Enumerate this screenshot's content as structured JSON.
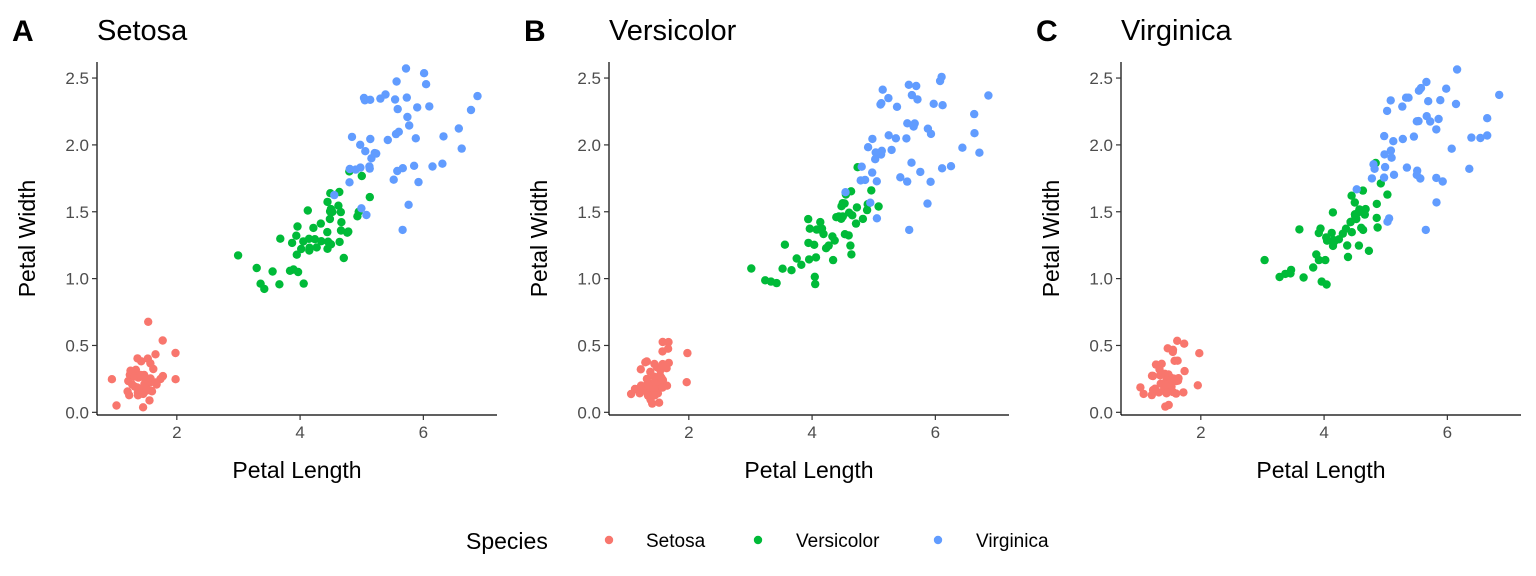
{
  "chart_data": [
    {
      "type": "scatter",
      "tag": "A",
      "title": "Setosa",
      "xlabel": "Petal Length",
      "ylabel": "Petal Width",
      "xlim": [
        0.705,
        7.195
      ],
      "ylim": [
        -0.02,
        2.62
      ],
      "xticks": [
        2,
        4,
        6
      ],
      "yticks": [
        "0.0",
        "0.5",
        "1.0",
        "1.5",
        "2.0",
        "2.5"
      ],
      "grid": false,
      "jitter": true
    },
    {
      "type": "scatter",
      "tag": "B",
      "title": "Versicolor",
      "xlabel": "Petal Length",
      "ylabel": "Petal Width",
      "xlim": [
        0.705,
        7.195
      ],
      "ylim": [
        -0.02,
        2.62
      ],
      "xticks": [
        2,
        4,
        6
      ],
      "yticks": [
        "0.0",
        "0.5",
        "1.0",
        "1.5",
        "2.0",
        "2.5"
      ],
      "grid": false,
      "jitter": true
    },
    {
      "type": "scatter",
      "tag": "C",
      "title": "Virginica",
      "xlabel": "Petal Length",
      "ylabel": "Petal Width",
      "xlim": [
        0.705,
        7.195
      ],
      "ylim": [
        -0.02,
        2.62
      ],
      "xticks": [
        2,
        4,
        6
      ],
      "yticks": [
        "0.0",
        "0.5",
        "1.0",
        "1.5",
        "2.0",
        "2.5"
      ],
      "grid": false,
      "jitter": true
    }
  ],
  "series": [
    {
      "name": "Setosa",
      "color": "#F8766D",
      "points": [
        [
          1.4,
          0.2
        ],
        [
          1.4,
          0.2
        ],
        [
          1.3,
          0.2
        ],
        [
          1.5,
          0.2
        ],
        [
          1.4,
          0.2
        ],
        [
          1.7,
          0.4
        ],
        [
          1.4,
          0.3
        ],
        [
          1.5,
          0.2
        ],
        [
          1.4,
          0.2
        ],
        [
          1.5,
          0.1
        ],
        [
          1.5,
          0.2
        ],
        [
          1.6,
          0.2
        ],
        [
          1.4,
          0.1
        ],
        [
          1.1,
          0.1
        ],
        [
          1.2,
          0.2
        ],
        [
          1.5,
          0.4
        ],
        [
          1.3,
          0.4
        ],
        [
          1.4,
          0.3
        ],
        [
          1.7,
          0.3
        ],
        [
          1.5,
          0.3
        ],
        [
          1.7,
          0.2
        ],
        [
          1.5,
          0.4
        ],
        [
          1.0,
          0.2
        ],
        [
          1.7,
          0.5
        ],
        [
          1.9,
          0.2
        ],
        [
          1.6,
          0.2
        ],
        [
          1.6,
          0.4
        ],
        [
          1.5,
          0.2
        ],
        [
          1.4,
          0.2
        ],
        [
          1.6,
          0.2
        ],
        [
          1.6,
          0.2
        ],
        [
          1.5,
          0.4
        ],
        [
          1.5,
          0.1
        ],
        [
          1.4,
          0.2
        ],
        [
          1.5,
          0.2
        ],
        [
          1.2,
          0.2
        ],
        [
          1.3,
          0.2
        ],
        [
          1.4,
          0.1
        ],
        [
          1.3,
          0.2
        ],
        [
          1.5,
          0.2
        ],
        [
          1.3,
          0.3
        ],
        [
          1.3,
          0.3
        ],
        [
          1.3,
          0.2
        ],
        [
          1.6,
          0.6
        ],
        [
          1.9,
          0.4
        ],
        [
          1.4,
          0.3
        ],
        [
          1.6,
          0.2
        ],
        [
          1.4,
          0.2
        ],
        [
          1.5,
          0.2
        ],
        [
          1.4,
          0.2
        ]
      ]
    },
    {
      "name": "Versicolor",
      "color": "#00BA38",
      "points": [
        [
          4.7,
          1.4
        ],
        [
          4.5,
          1.5
        ],
        [
          4.9,
          1.5
        ],
        [
          4.0,
          1.3
        ],
        [
          4.6,
          1.5
        ],
        [
          4.5,
          1.3
        ],
        [
          4.7,
          1.6
        ],
        [
          3.3,
          1.0
        ],
        [
          4.6,
          1.3
        ],
        [
          3.9,
          1.4
        ],
        [
          3.5,
          1.0
        ],
        [
          4.2,
          1.5
        ],
        [
          4.0,
          1.0
        ],
        [
          4.7,
          1.4
        ],
        [
          3.6,
          1.3
        ],
        [
          4.4,
          1.4
        ],
        [
          4.5,
          1.5
        ],
        [
          4.1,
          1.0
        ],
        [
          4.5,
          1.5
        ],
        [
          3.9,
          1.1
        ],
        [
          4.8,
          1.8
        ],
        [
          4.0,
          1.3
        ],
        [
          4.9,
          1.5
        ],
        [
          4.7,
          1.2
        ],
        [
          4.3,
          1.3
        ],
        [
          4.4,
          1.4
        ],
        [
          4.8,
          1.4
        ],
        [
          5.0,
          1.7
        ],
        [
          4.5,
          1.5
        ],
        [
          3.5,
          1.0
        ],
        [
          3.8,
          1.1
        ],
        [
          3.7,
          1.0
        ],
        [
          3.9,
          1.2
        ],
        [
          5.1,
          1.6
        ],
        [
          4.5,
          1.5
        ],
        [
          4.5,
          1.6
        ],
        [
          4.7,
          1.5
        ],
        [
          4.4,
          1.3
        ],
        [
          4.1,
          1.3
        ],
        [
          4.0,
          1.3
        ],
        [
          4.4,
          1.2
        ],
        [
          4.6,
          1.4
        ],
        [
          4.0,
          1.2
        ],
        [
          3.3,
          1.0
        ],
        [
          4.2,
          1.3
        ],
        [
          4.2,
          1.2
        ],
        [
          4.2,
          1.3
        ],
        [
          4.3,
          1.3
        ],
        [
          3.0,
          1.1
        ],
        [
          4.1,
          1.3
        ]
      ]
    },
    {
      "name": "Virginica",
      "color": "#619CFF",
      "points": [
        [
          6.0,
          2.5
        ],
        [
          5.1,
          1.9
        ],
        [
          5.9,
          2.1
        ],
        [
          5.6,
          1.8
        ],
        [
          5.8,
          2.2
        ],
        [
          6.6,
          2.1
        ],
        [
          4.5,
          1.7
        ],
        [
          6.3,
          1.8
        ],
        [
          5.8,
          1.8
        ],
        [
          6.1,
          2.5
        ],
        [
          5.1,
          2.0
        ],
        [
          5.3,
          1.9
        ],
        [
          5.5,
          2.1
        ],
        [
          5.0,
          2.0
        ],
        [
          5.1,
          2.4
        ],
        [
          5.3,
          2.3
        ],
        [
          5.5,
          1.8
        ],
        [
          6.7,
          2.2
        ],
        [
          6.9,
          2.3
        ],
        [
          5.0,
          1.5
        ],
        [
          5.7,
          2.3
        ],
        [
          4.9,
          2.0
        ],
        [
          6.7,
          2.0
        ],
        [
          4.9,
          1.8
        ],
        [
          5.7,
          2.1
        ],
        [
          6.0,
          1.8
        ],
        [
          4.8,
          1.8
        ],
        [
          4.9,
          1.8
        ],
        [
          5.6,
          2.1
        ],
        [
          5.8,
          1.6
        ],
        [
          6.1,
          1.9
        ],
        [
          6.4,
          2.0
        ],
        [
          5.6,
          2.2
        ],
        [
          5.1,
          1.5
        ],
        [
          5.6,
          1.4
        ],
        [
          6.1,
          2.3
        ],
        [
          5.6,
          2.4
        ],
        [
          5.5,
          1.8
        ],
        [
          4.8,
          1.8
        ],
        [
          5.4,
          2.1
        ],
        [
          5.6,
          2.4
        ],
        [
          5.1,
          2.3
        ],
        [
          5.1,
          1.9
        ],
        [
          5.9,
          2.3
        ],
        [
          5.7,
          2.5
        ],
        [
          5.2,
          2.3
        ],
        [
          5.0,
          1.9
        ],
        [
          5.2,
          2.0
        ],
        [
          5.4,
          2.3
        ],
        [
          5.1,
          1.8
        ]
      ]
    }
  ],
  "legend": {
    "title": "Species",
    "position": "bottom",
    "items": [
      "Setosa",
      "Versicolor",
      "Virginica"
    ]
  }
}
